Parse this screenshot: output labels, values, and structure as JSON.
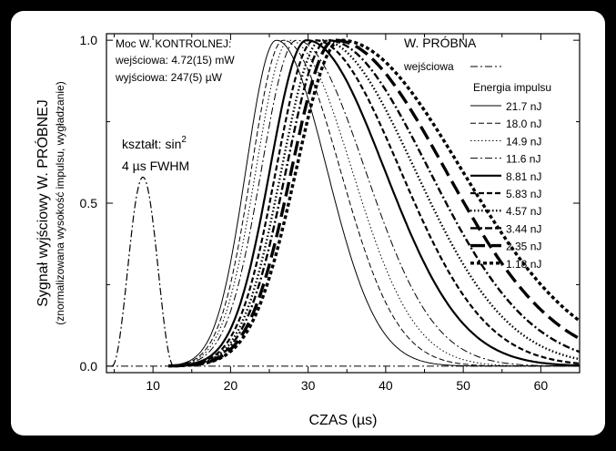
{
  "colors": {
    "frame": "#000000",
    "panel": "#ffffff",
    "ink": "#000000"
  },
  "chart_data": {
    "type": "line",
    "xlabel": "CZAS (µs)",
    "ylabel": "Sygnał wyjściowy W. PRÓBNEJ",
    "ylabel2": "(znormalizowana wysokość impulsu, wygładzanie)",
    "xlim": [
      4,
      65
    ],
    "ylim": [
      -0.02,
      1.02
    ],
    "xticks": [
      10,
      20,
      30,
      40,
      50,
      60
    ],
    "yticks": [
      0.0,
      0.5,
      1.0
    ],
    "ytick_labels": [
      "0.0",
      "0.5",
      "1.0"
    ],
    "info_lines": [
      "Moc W. KONTROLNEJ:",
      "wejściowa: 4.72(15) mW",
      "wyjściowa:   247(5) µW"
    ],
    "shape_label_1": "kształt: sin",
    "shape_label_exp": "2",
    "shape_label_2": "4 µs FWHM",
    "legend_title": "W. PRÓBNA",
    "legend_input_label": "wejściowa",
    "legend_energy_title": "Energia impulsu",
    "input_pulse": {
      "center": 8.7,
      "fwhm": 4,
      "peak": 0.58
    },
    "series": [
      {
        "name": "21.7 nJ",
        "peak_x": 25.9,
        "rise": 3.9,
        "fall": 6.5,
        "style": "solid",
        "width": 1.0
      },
      {
        "name": "18.0 nJ",
        "peak_x": 26.8,
        "rise": 4.1,
        "fall": 7.3,
        "style": "dash",
        "width": 1.0
      },
      {
        "name": "14.9 nJ",
        "peak_x": 27.6,
        "rise": 4.3,
        "fall": 8.0,
        "style": "dot",
        "width": 1.0
      },
      {
        "name": "11.6 nJ",
        "peak_x": 28.5,
        "rise": 4.5,
        "fall": 8.8,
        "style": "dashdot",
        "width": 1.0
      },
      {
        "name": "8.81 nJ",
        "peak_x": 29.8,
        "rise": 4.7,
        "fall": 10.0,
        "style": "solid",
        "width": 2.2
      },
      {
        "name": "5.83 nJ",
        "peak_x": 30.8,
        "rise": 4.9,
        "fall": 11.0,
        "style": "dash",
        "width": 2.2
      },
      {
        "name": "4.57 nJ",
        "peak_x": 31.7,
        "rise": 5.1,
        "fall": 12.0,
        "style": "dot",
        "width": 2.4
      },
      {
        "name": "3.44 nJ",
        "peak_x": 32.5,
        "rise": 5.3,
        "fall": 13.0,
        "style": "dashdot",
        "width": 2.4
      },
      {
        "name": "2.35 nJ",
        "peak_x": 33.4,
        "rise": 5.5,
        "fall": 14.2,
        "style": "longdash",
        "width": 3.4
      },
      {
        "name": "1.18 nJ",
        "peak_x": 34.2,
        "rise": 5.7,
        "fall": 15.5,
        "style": "bigdot",
        "width": 3.4
      }
    ]
  }
}
